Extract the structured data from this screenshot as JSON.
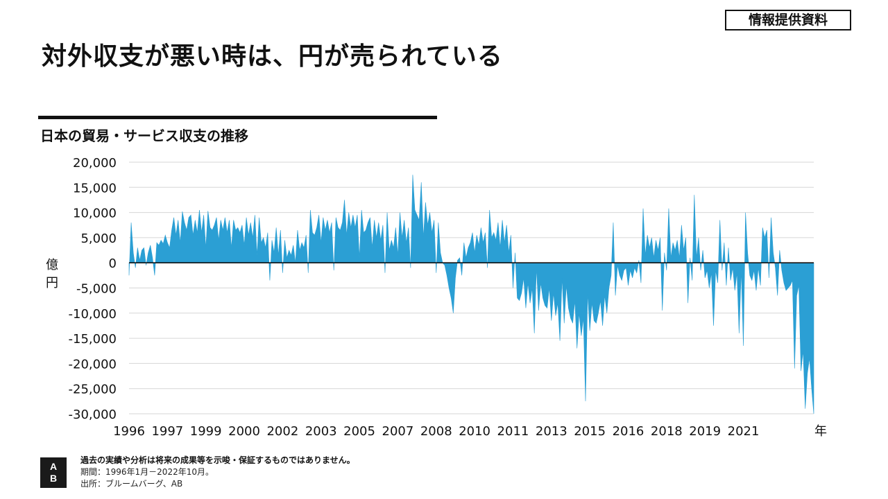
{
  "badge": "情報提供資料",
  "headline": "対外収支が悪い時は、円が売られている",
  "chart_data": {
    "type": "area",
    "title": "日本の貿易・サービス収支の推移",
    "ylabel": "億円",
    "xlabel": "年",
    "ylim": [
      -30000,
      20000
    ],
    "yticks": [
      20000,
      15000,
      10000,
      5000,
      0,
      -5000,
      -10000,
      -15000,
      -20000,
      -25000,
      -30000
    ],
    "ytick_labels": [
      "20,000",
      "15,000",
      "10,000",
      "5,000",
      "0",
      "-5,000",
      "-10,000",
      "-15,000",
      "-20,000",
      "-25,000",
      "-30,000"
    ],
    "xtick_labels": [
      "1996",
      "1997",
      "1999",
      "2000",
      "2002",
      "2003",
      "2005",
      "2007",
      "2008",
      "2010",
      "2011",
      "2013",
      "2015",
      "2016",
      "2018",
      "2019",
      "2021"
    ],
    "xtick_values": [
      1996.0,
      1997.5,
      1999.0,
      2000.5,
      2002.0,
      2003.5,
      2005.0,
      2006.5,
      2008.0,
      2009.5,
      2011.0,
      2012.5,
      2014.0,
      2015.5,
      2017.0,
      2018.5,
      2020.0
    ],
    "x_range": [
      1996.0,
      2022.75
    ],
    "grid": true,
    "color": "#2b9fd4",
    "period": "1996-01 to 2022-10, monthly",
    "values": [
      -2500,
      8000,
      2000,
      -1000,
      3000,
      500,
      2500,
      3000,
      -500,
      2000,
      3500,
      1000,
      -2500,
      4000,
      3500,
      4500,
      3800,
      5500,
      4000,
      3000,
      6500,
      9000,
      5500,
      8500,
      4000,
      10200,
      8000,
      6500,
      9000,
      9500,
      5500,
      8500,
      6000,
      10500,
      6000,
      9500,
      3000,
      10300,
      7000,
      6500,
      7500,
      9000,
      4500,
      8500,
      6500,
      9000,
      6000,
      8500,
      3000,
      8500,
      6500,
      7000,
      6000,
      7500,
      3500,
      9000,
      5500,
      8000,
      5000,
      9500,
      1500,
      9000,
      4000,
      5000,
      3000,
      6000,
      -3500,
      4500,
      2000,
      7000,
      1500,
      6500,
      -2000,
      4500,
      1000,
      2500,
      1500,
      3500,
      0,
      6500,
      2500,
      4000,
      3000,
      5500,
      -2000,
      10500,
      6000,
      5500,
      7000,
      9500,
      4000,
      9000,
      6500,
      8500,
      6000,
      8000,
      -1500,
      9000,
      7000,
      6500,
      8000,
      12500,
      5500,
      10000,
      7000,
      9500,
      7000,
      9500,
      1000,
      10500,
      6000,
      6500,
      8000,
      9000,
      3000,
      8500,
      5000,
      8000,
      4500,
      7500,
      -2000,
      10000,
      2500,
      4500,
      3000,
      7000,
      1500,
      10000,
      5000,
      8500,
      4000,
      7000,
      -1000,
      17500,
      10500,
      9500,
      8500,
      16000,
      5000,
      12000,
      7500,
      10000,
      6000,
      8500,
      -2000,
      8000,
      2000,
      0,
      -500,
      -2500,
      -5000,
      -7000,
      -10000,
      -3000,
      500,
      1000,
      -2500,
      4000,
      1000,
      3000,
      4000,
      6000,
      2000,
      5500,
      3500,
      7000,
      4000,
      6000,
      -1000,
      10500,
      5000,
      6000,
      4500,
      8000,
      3000,
      8500,
      4000,
      7500,
      2000,
      5500,
      -5000,
      2000,
      -7000,
      -7500,
      -6000,
      -3000,
      -9000,
      -4000,
      -8000,
      -5000,
      -14000,
      -1000,
      -9500,
      -4000,
      -7000,
      -8500,
      -9000,
      -5000,
      -11500,
      -6000,
      -10500,
      -8000,
      -15500,
      -3000,
      -12000,
      -4500,
      -9000,
      -11000,
      -12000,
      -7500,
      -17000,
      -10000,
      -14500,
      -11000,
      -27500,
      -6000,
      -13500,
      -8000,
      -11500,
      -12000,
      -10000,
      -7500,
      -12500,
      -6500,
      -10000,
      -5000,
      -2500,
      8000,
      -6500,
      -500,
      -2500,
      -3500,
      -1500,
      -1000,
      -4500,
      -1500,
      -3000,
      -1000,
      -2000,
      500,
      -4000,
      10800,
      1500,
      5500,
      3000,
      5000,
      1000,
      4500,
      2500,
      5000,
      -9500,
      2000,
      -1500,
      10800,
      1000,
      4000,
      2500,
      4500,
      1000,
      7500,
      2500,
      5000,
      -8000,
      1000,
      -3500,
      13500,
      1000,
      5000,
      -1500,
      2500,
      -3000,
      -1500,
      -5000,
      -2000,
      -12500,
      -1500,
      -4000,
      8500,
      -1500,
      4000,
      -4500,
      3000,
      -3500,
      -1000,
      -5500,
      -2000,
      -14000,
      -1500,
      -16500,
      10000,
      2000,
      -2500,
      -3500,
      -1500,
      -5500,
      -1000,
      -4500,
      7000,
      5000,
      6500,
      -3000,
      9000,
      2000,
      -1000,
      -6500,
      2500,
      -1500,
      -4000,
      -5500,
      -5000,
      -4500,
      -3500,
      -21000,
      -6500,
      -4500,
      -21500,
      -17500,
      -29000,
      -22000,
      -19000,
      -25000,
      -30000
    ]
  },
  "footnote": {
    "disclaimer": "過去の実績や分析は将来の成果等を示唆・保証するものではありません。",
    "period": "期間：1996年1月－2022年10月。",
    "source": "出所：ブルームバーグ、AB"
  },
  "logo": {
    "top": "A",
    "bottom": "B"
  }
}
